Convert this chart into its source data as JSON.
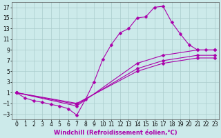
{
  "xlabel": "Windchill (Refroidissement éolien,°C)",
  "bg_color": "#cceaea",
  "line_color": "#aa00aa",
  "grid_color": "#aacccc",
  "xlim": [
    -0.5,
    23.5
  ],
  "ylim": [
    -4,
    18
  ],
  "xticks": [
    0,
    1,
    2,
    3,
    4,
    5,
    6,
    7,
    8,
    9,
    10,
    11,
    12,
    13,
    14,
    15,
    16,
    17,
    18,
    19,
    20,
    21,
    22,
    23
  ],
  "yticks": [
    -3,
    -1,
    1,
    3,
    5,
    7,
    9,
    11,
    13,
    15,
    17
  ],
  "lines": [
    {
      "x": [
        0,
        1,
        2,
        3,
        4,
        5,
        6,
        7,
        8,
        9,
        10,
        11,
        12,
        13,
        14,
        15,
        16,
        17,
        18,
        19,
        20,
        21,
        22,
        23
      ],
      "y": [
        1,
        0,
        -0.5,
        -0.8,
        -1.2,
        -1.5,
        -2.0,
        -3.2,
        -0.3,
        3.0,
        7.2,
        10.0,
        12.2,
        13.0,
        15.0,
        15.2,
        17.0,
        17.2,
        14.2,
        12.0,
        10.0,
        9.0,
        9.0,
        9.0
      ]
    },
    {
      "x": [
        0,
        7,
        14,
        17,
        21,
        23
      ],
      "y": [
        1.0,
        -1.5,
        6.5,
        8.0,
        9.0,
        9.0
      ]
    },
    {
      "x": [
        0,
        7,
        14,
        17,
        21,
        23
      ],
      "y": [
        1.0,
        -1.2,
        5.5,
        7.0,
        8.0,
        8.0
      ]
    },
    {
      "x": [
        0,
        7,
        14,
        17,
        21,
        23
      ],
      "y": [
        1.0,
        -1.0,
        5.0,
        6.5,
        7.5,
        7.5
      ]
    }
  ],
  "marker": "D",
  "marker_size": 2.5,
  "axis_fontsize": 6,
  "tick_fontsize": 5.5
}
